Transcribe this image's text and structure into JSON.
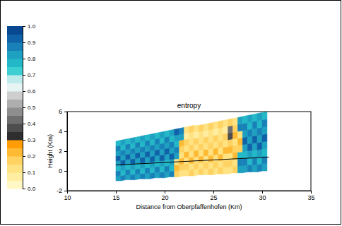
{
  "chart_data": {
    "type": "heatmap",
    "title": "entropy",
    "x_label": "Distance from Oberpfaffenhofen (Km)",
    "y_label": "Height (Km)",
    "xlim": [
      10,
      35
    ],
    "ylim": [
      -2,
      6
    ],
    "xticks": [
      10,
      15,
      20,
      25,
      30,
      35
    ],
    "yticks": [
      -2,
      0,
      2,
      4,
      6
    ],
    "x": [
      15,
      15.5,
      16,
      16.5,
      17,
      17.5,
      18,
      18.5,
      19,
      19.5,
      20,
      20.5,
      21,
      21.5,
      22,
      22.5,
      23,
      23.5,
      24,
      24.5,
      25,
      25.5,
      26,
      26.5,
      27,
      27.5,
      28,
      28.5,
      29,
      29.5,
      30,
      30.5
    ],
    "bottom": [
      -1.0,
      -1.0,
      -0.9,
      -0.9,
      -0.9,
      -0.8,
      -0.8,
      -0.8,
      -0.7,
      -0.7,
      -0.7,
      -0.6,
      -0.6,
      -0.6,
      -0.5,
      -0.5,
      -0.5,
      -0.4,
      -0.4,
      -0.4,
      -0.4,
      -0.3,
      -0.3,
      -0.3,
      -0.2,
      -0.2,
      -0.2,
      -0.1,
      -0.1,
      -0.1,
      0.0,
      0.0
    ],
    "top": [
      3.0,
      3.1,
      3.2,
      3.3,
      3.4,
      3.5,
      3.6,
      3.7,
      3.8,
      3.9,
      4.0,
      4.1,
      4.2,
      4.3,
      4.4,
      4.5,
      4.6,
      4.6,
      4.7,
      4.8,
      4.9,
      5.0,
      5.1,
      5.2,
      5.3,
      5.4,
      5.5,
      5.6,
      5.7,
      5.8,
      5.9,
      6.0
    ],
    "values": [
      [
        0.8,
        0.85,
        0.75,
        0.8,
        0.9,
        0.8,
        0.85,
        0.75
      ],
      [
        0.85,
        0.75,
        0.8,
        0.9,
        0.8,
        0.85,
        0.75,
        0.8
      ],
      [
        0.8,
        0.85,
        0.75,
        0.8,
        0.9,
        0.8,
        0.85,
        0.75
      ],
      [
        0.85,
        0.75,
        0.8,
        0.9,
        0.8,
        0.85,
        0.75,
        0.8
      ],
      [
        0.8,
        0.85,
        0.75,
        0.8,
        0.9,
        0.8,
        0.85,
        0.75
      ],
      [
        0.85,
        0.75,
        0.8,
        0.9,
        0.8,
        0.85,
        0.75,
        0.8
      ],
      [
        0.8,
        0.85,
        0.75,
        0.8,
        0.9,
        0.8,
        0.85,
        0.75
      ],
      [
        0.85,
        0.75,
        0.8,
        0.9,
        0.8,
        0.85,
        0.75,
        0.8
      ],
      [
        0.8,
        0.85,
        0.75,
        0.8,
        0.9,
        0.8,
        0.85,
        0.75
      ],
      [
        0.85,
        0.75,
        0.8,
        0.9,
        0.8,
        0.85,
        0.75,
        0.8
      ],
      [
        0.8,
        0.85,
        0.75,
        0.8,
        0.9,
        0.8,
        0.85,
        0.75
      ],
      [
        0.85,
        0.75,
        0.8,
        0.9,
        0.8,
        0.85,
        0.75,
        0.8
      ],
      [
        0.15,
        0.2,
        0.1,
        0.8,
        0.85,
        0.75,
        0.8,
        0.9
      ],
      [
        0.1,
        0.15,
        0.2,
        0.1,
        0.15,
        0.2,
        0.8,
        0.85
      ],
      [
        0.1,
        0.15,
        0.1,
        0.2,
        0.1,
        0.15,
        0.05,
        0.1
      ],
      [
        0.15,
        0.1,
        0.2,
        0.1,
        0.15,
        0.1,
        0.1,
        0.15
      ],
      [
        0.1,
        0.15,
        0.1,
        0.2,
        0.1,
        0.15,
        0.05,
        0.1
      ],
      [
        0.15,
        0.1,
        0.2,
        0.1,
        0.15,
        0.1,
        0.1,
        0.15
      ],
      [
        0.1,
        0.15,
        0.1,
        0.2,
        0.1,
        0.15,
        0.05,
        0.1
      ],
      [
        0.15,
        0.1,
        0.2,
        0.1,
        0.15,
        0.1,
        0.1,
        0.15
      ],
      [
        0.1,
        0.15,
        0.1,
        0.2,
        0.1,
        0.15,
        0.05,
        0.1
      ],
      [
        0.15,
        0.1,
        0.2,
        0.1,
        0.15,
        0.1,
        0.1,
        0.15
      ],
      [
        0.1,
        0.15,
        0.1,
        0.2,
        0.1,
        0.15,
        0.05,
        0.1
      ],
      [
        0.1,
        0.15,
        0.1,
        0.2,
        0.15,
        0.35,
        0.4,
        0.15
      ],
      [
        0.15,
        0.1,
        0.2,
        0.15,
        0.1,
        0.2,
        0.15,
        0.1
      ],
      [
        0.8,
        0.85,
        0.75,
        0.15,
        0.2,
        0.1,
        0.85,
        0.8
      ],
      [
        0.8,
        0.85,
        0.75,
        0.8,
        0.9,
        0.8,
        0.85,
        0.75
      ],
      [
        0.85,
        0.75,
        0.8,
        0.9,
        0.8,
        0.85,
        0.75,
        0.8
      ],
      [
        0.8,
        0.85,
        0.75,
        0.8,
        0.9,
        0.8,
        0.85,
        0.75
      ],
      [
        0.85,
        0.75,
        0.8,
        0.9,
        0.8,
        0.85,
        0.75,
        0.8
      ],
      [
        0.8,
        0.85,
        0.75,
        0.8,
        0.9,
        0.8,
        0.85,
        0.75
      ]
    ],
    "line": {
      "x": [
        15,
        30.7
      ],
      "y": [
        0.6,
        1.4
      ],
      "color": "#000000"
    },
    "colorbar": {
      "range": [
        0,
        1
      ],
      "ticks": [
        {
          "value": 0,
          "label": "0.0"
        },
        {
          "value": 0.1,
          "label": "0.1"
        },
        {
          "value": 0.2,
          "label": "0.2"
        },
        {
          "value": 0.3,
          "label": "0.3"
        },
        {
          "value": 0.4,
          "label": "0.4"
        },
        {
          "value": 0.5,
          "label": "0.5"
        },
        {
          "value": 0.6,
          "label": "0.6"
        },
        {
          "value": 0.7,
          "label": "0.7"
        },
        {
          "value": 0.8,
          "label": "0.8"
        },
        {
          "value": 0.9,
          "label": "0.9"
        },
        {
          "value": 1,
          "label": "1.0"
        }
      ],
      "colors": [
        "#fff8c4",
        "#ffeea2",
        "#ffe282",
        "#ffd262",
        "#ffba34",
        "#ff9c06",
        "#2e2e2e",
        "#4e4e4e",
        "#6e6e6e",
        "#8e8e8e",
        "#aeaeae",
        "#cecece",
        "#e6f4f4",
        "#bdeaea",
        "#3ecfd2",
        "#22b8c8",
        "#1ea0c0",
        "#1882b8",
        "#1062a8",
        "#084890"
      ]
    }
  }
}
